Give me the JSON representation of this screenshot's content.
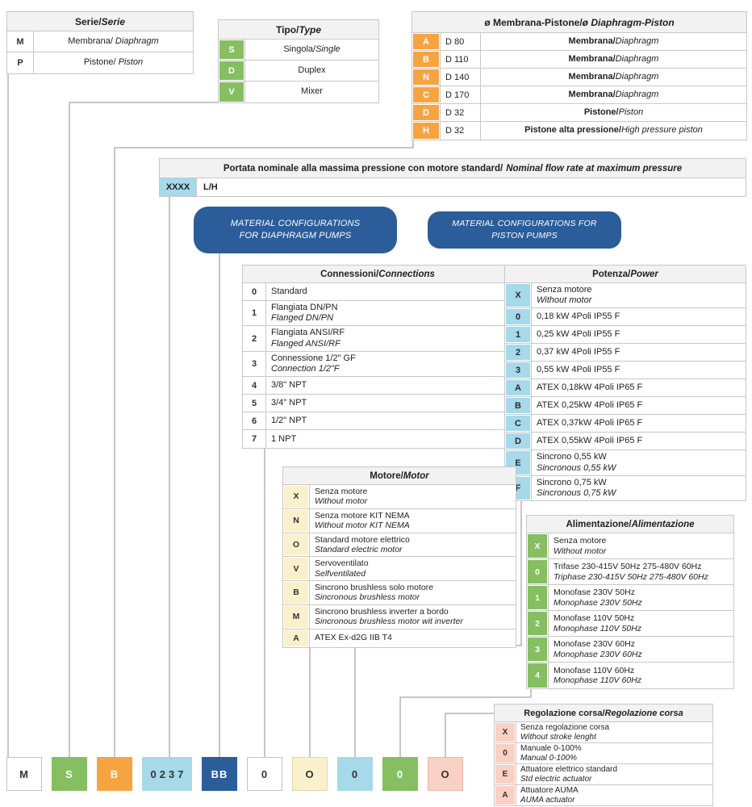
{
  "colors": {
    "green": "#86BE62",
    "orange": "#F6A441",
    "cyan": "#A6D9E9",
    "blue": "#2B5D9B",
    "cream": "#FAF0CB",
    "pink": "#F9D0C4",
    "header_bg": "#F2F2F2",
    "border": "#C8C8C8",
    "line": "#8C8C8C"
  },
  "tables": {
    "serie": {
      "header_it": "Serie/",
      "header_en": "Serie",
      "rows": [
        {
          "code": "M",
          "it": "Membrana/",
          "en": "Diaphragm"
        },
        {
          "code": "P",
          "it": "Pistone/",
          "en": "Piston"
        }
      ]
    },
    "tipo": {
      "header_it": "Tipo/",
      "header_en": "Type",
      "rows": [
        {
          "code": "S",
          "it": "Singola/",
          "en": "Single"
        },
        {
          "code": "D",
          "it": "Duplex",
          "en": ""
        },
        {
          "code": "V",
          "it": "Mixer",
          "en": ""
        }
      ]
    },
    "membrana": {
      "header_it": "ø Membrana-Pistone/",
      "header_en": "ø Diaphragm-Piston",
      "rows": [
        {
          "code": "A",
          "size": "D 80",
          "it": "Membrana/",
          "en": "Diaphragm"
        },
        {
          "code": "B",
          "size": "D 110",
          "it": "Membrana/",
          "en": "Diaphragm"
        },
        {
          "code": "N",
          "size": "D 140",
          "it": "Membrana/",
          "en": "Diaphragm"
        },
        {
          "code": "C",
          "size": "D 170",
          "it": "Membrana/",
          "en": "Diaphragm"
        },
        {
          "code": "D",
          "size": "D 32",
          "it": "Pistone/",
          "en": "Piston"
        },
        {
          "code": "H",
          "size": "D 32",
          "it": "Pistone alta pressione/",
          "en": "High pressure piston"
        }
      ]
    },
    "portata": {
      "header_it": "Portata nominale alla massima pressione con motore standard/",
      "header_en": "Nominal flow rate at maximum pressure",
      "code": "XXXX",
      "unit": "L/H"
    },
    "connessioni": {
      "header_it": "Connessioni/",
      "header_en": "Connections",
      "rows": [
        {
          "code": "0",
          "it": "Standard",
          "en": ""
        },
        {
          "code": "1",
          "it": "Flangiata DN/PN",
          "en": "Flanged DN/PN"
        },
        {
          "code": "2",
          "it": "Flangiata ANSI/RF",
          "en": "Flanged ANSI/RF"
        },
        {
          "code": "3",
          "it": "Connessione 1/2\" GF",
          "en": "Connection 1/2\"F"
        },
        {
          "code": "4",
          "it": "3/8\" NPT",
          "en": ""
        },
        {
          "code": "5",
          "it": "3/4\" NPT",
          "en": ""
        },
        {
          "code": "6",
          "it": "1/2\" NPT",
          "en": ""
        },
        {
          "code": "7",
          "it": "1 NPT",
          "en": ""
        }
      ]
    },
    "potenza": {
      "header_it": "Potenza/",
      "header_en": "Power",
      "rows": [
        {
          "code": "X",
          "it": "Senza motore",
          "en": "Without motor"
        },
        {
          "code": "0",
          "it": "0,18 kW 4Poli IP55 F",
          "en": ""
        },
        {
          "code": "1",
          "it": "0,25 kW 4Poli IP55 F",
          "en": ""
        },
        {
          "code": "2",
          "it": "0,37 kW 4Poli IP55 F",
          "en": ""
        },
        {
          "code": "3",
          "it": "0,55 kW 4Poli IP55 F",
          "en": ""
        },
        {
          "code": "A",
          "it": "ATEX 0,18kW 4Poli IP65 F",
          "en": ""
        },
        {
          "code": "B",
          "it": "ATEX 0,25kW 4Poli IP65 F",
          "en": ""
        },
        {
          "code": "C",
          "it": "ATEX 0,37kW 4Poli IP65 F",
          "en": ""
        },
        {
          "code": "D",
          "it": "ATEX 0,55kW 4Poli IP65 F",
          "en": ""
        },
        {
          "code": "E",
          "it": "Sincrono 0,55 kW",
          "en": "Sincronous 0,55 kW"
        },
        {
          "code": "F",
          "it": "Sincrono 0,75 kW",
          "en": "Sincronous 0,75 kW"
        }
      ]
    },
    "motore": {
      "header_it": "Motore/",
      "header_en": "Motor",
      "rows": [
        {
          "code": "X",
          "it": "Senza motore",
          "en": "Without motor"
        },
        {
          "code": "N",
          "it": "Senza motore KIT NEMA",
          "en": "Without motor KIT NEMA"
        },
        {
          "code": "O",
          "it": "Standard motore elettrico",
          "en": "Standard electric motor"
        },
        {
          "code": "V",
          "it": "Servoventilato",
          "en": "Selfventilated"
        },
        {
          "code": "B",
          "it": "Sincrono brushless solo motore",
          "en": "Sincronous brushless motor"
        },
        {
          "code": "M",
          "it": "Sincrono brushless inverter a bordo",
          "en": "Sincronous brushless motor wit inverter"
        },
        {
          "code": "A",
          "it": "ATEX Ex-d2G IIB T4",
          "en": ""
        }
      ]
    },
    "alimentazione": {
      "header_it": "Alimentazione/",
      "header_en": "Alimentazione",
      "rows": [
        {
          "code": "X",
          "it": "Senza motore",
          "en": "Without motor"
        },
        {
          "code": "0",
          "it": "Trifase 230-415V 50Hz 275-480V 60Hz",
          "en": "Triphase 230-415V 50Hz 275-480V 60Hz"
        },
        {
          "code": "1",
          "it": "Monofase 230V 50Hz",
          "en": "Monophase 230V 50Hz"
        },
        {
          "code": "2",
          "it": "Monofase 110V 50Hz",
          "en": "Monophase 110V 50Hz"
        },
        {
          "code": "3",
          "it": "Monofase 230V 60Hz",
          "en": "Monophase 230V 60Hz"
        },
        {
          "code": "4",
          "it": "Monofase 110V 60Hz",
          "en": "Monophase 110V 60Hz"
        }
      ]
    },
    "regolazione": {
      "header_it": "Regolazione corsa/",
      "header_en": "Regolazione corsa",
      "rows": [
        {
          "code": "X",
          "it": "Senza regolazione corsa",
          "en": "Without stroke lenght"
        },
        {
          "code": "0",
          "it": "Manuale 0-100%",
          "en": "Manual 0-100%"
        },
        {
          "code": "E",
          "it": "Attuatore elettrico standard",
          "en": "Std electric actuator"
        },
        {
          "code": "A",
          "it": "Attuatore AUMA",
          "en": "AUMA actuator"
        }
      ]
    }
  },
  "buttons": {
    "diaphragm": "MATERIAL CONFIGURATIONS FOR DIAPHRAGM PUMPS",
    "piston": "MATERIAL CONFIGURATIONS FOR PISTON PUMPS"
  },
  "example_code": [
    {
      "value": "M",
      "color": "white"
    },
    {
      "value": "S",
      "color": "green"
    },
    {
      "value": "B",
      "color": "orange"
    },
    {
      "value": "0237",
      "color": "cyan"
    },
    {
      "value": "BB",
      "color": "blue"
    },
    {
      "value": "0",
      "color": "white"
    },
    {
      "value": "O",
      "color": "cream"
    },
    {
      "value": "0",
      "color": "cyan"
    },
    {
      "value": "0",
      "color": "green"
    },
    {
      "value": "O",
      "color": "pink"
    }
  ]
}
